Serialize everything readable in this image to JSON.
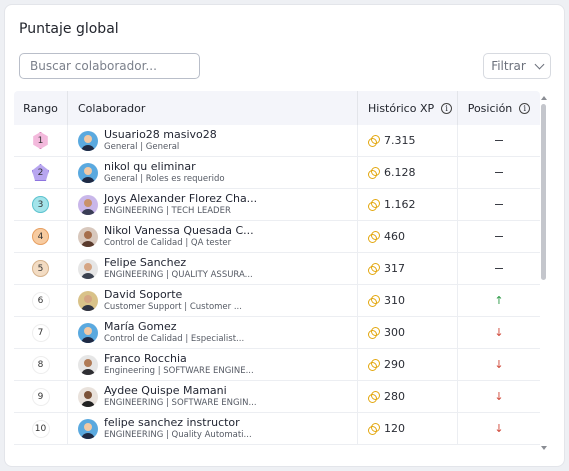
{
  "title": "Puntaje global",
  "search": {
    "placeholder": "Buscar colaborador..."
  },
  "filter": {
    "label": "Filtrar"
  },
  "headers": {
    "rank": "Rango",
    "collaborator": "Colaborador",
    "xp": "Histórico XP",
    "position": "Posición"
  },
  "rows": [
    {
      "rank": "1",
      "name": "Usuario28 masivo28",
      "sub": "General | General",
      "xp": "7.315",
      "trend": "none"
    },
    {
      "rank": "2",
      "name": "nikol qu eliminar",
      "sub": "General | Roles es requerido",
      "xp": "6.128",
      "trend": "none"
    },
    {
      "rank": "3",
      "name": "Joys Alexander Florez Cha...",
      "sub": "ENGINEERING | TECH LEADER",
      "xp": "1.162",
      "trend": "none"
    },
    {
      "rank": "4",
      "name": "Nikol Vanessa Quesada C...",
      "sub": "Control de Calidad | QA tester",
      "xp": "460",
      "trend": "none"
    },
    {
      "rank": "5",
      "name": "Felipe Sanchez",
      "sub": "ENGINEERING | QUALITY ASSURA...",
      "xp": "317",
      "trend": "none"
    },
    {
      "rank": "6",
      "name": "David Soporte",
      "sub": "Customer Support | Customer ...",
      "xp": "310",
      "trend": "up"
    },
    {
      "rank": "7",
      "name": "María Gomez",
      "sub": "Control de Calidad | Especialist...",
      "xp": "300",
      "trend": "down"
    },
    {
      "rank": "8",
      "name": "Franco Rocchia",
      "sub": "Engineering | SOFTWARE ENGINE...",
      "xp": "290",
      "trend": "down"
    },
    {
      "rank": "9",
      "name": "Aydee Quispe Mamani",
      "sub": "ENGINEERING | SOFTWARE ENGIN...",
      "xp": "280",
      "trend": "down"
    },
    {
      "rank": "10",
      "name": "felipe sanchez instructor",
      "sub": "ENGINEERING | Quality Automati...",
      "xp": "120",
      "trend": "down"
    }
  ],
  "colors": {
    "up": "#2e9a47",
    "down": "#d0493a",
    "coin": "#e3a70f"
  }
}
